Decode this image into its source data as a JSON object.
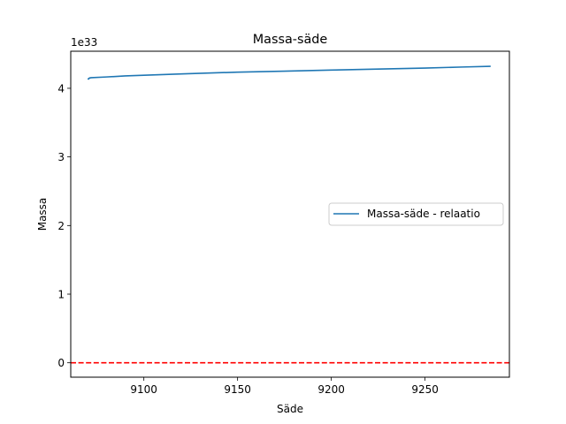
{
  "chart_data": {
    "type": "line",
    "title": "Massa-säde",
    "xlabel": "Säde",
    "ylabel": "Massa",
    "y_offset_label": "1e33",
    "xlim": [
      9061,
      9295
    ],
    "ylim": [
      -0.21,
      4.54
    ],
    "x_ticks": [
      9100,
      9150,
      9200,
      9250
    ],
    "y_ticks": [
      0,
      1,
      2,
      3,
      4
    ],
    "legend_position": "center-right",
    "grid": false,
    "series": [
      {
        "name": "Massa-säde - relaatio",
        "color": "#1f77b4",
        "style": "solid",
        "x": [
          9070,
          9070.5,
          9071,
          9072,
          9080,
          9090,
          9100,
          9120,
          9150,
          9175,
          9200,
          9225,
          9250,
          9270,
          9285
        ],
        "y": [
          4.14,
          4.135,
          4.15,
          4.155,
          4.165,
          4.18,
          4.19,
          4.21,
          4.235,
          4.25,
          4.265,
          4.28,
          4.295,
          4.31,
          4.32
        ]
      },
      {
        "name": "",
        "color": "#ff0000",
        "style": "dashed",
        "x": [
          9061,
          9295
        ],
        "y": [
          0,
          0
        ]
      }
    ]
  }
}
